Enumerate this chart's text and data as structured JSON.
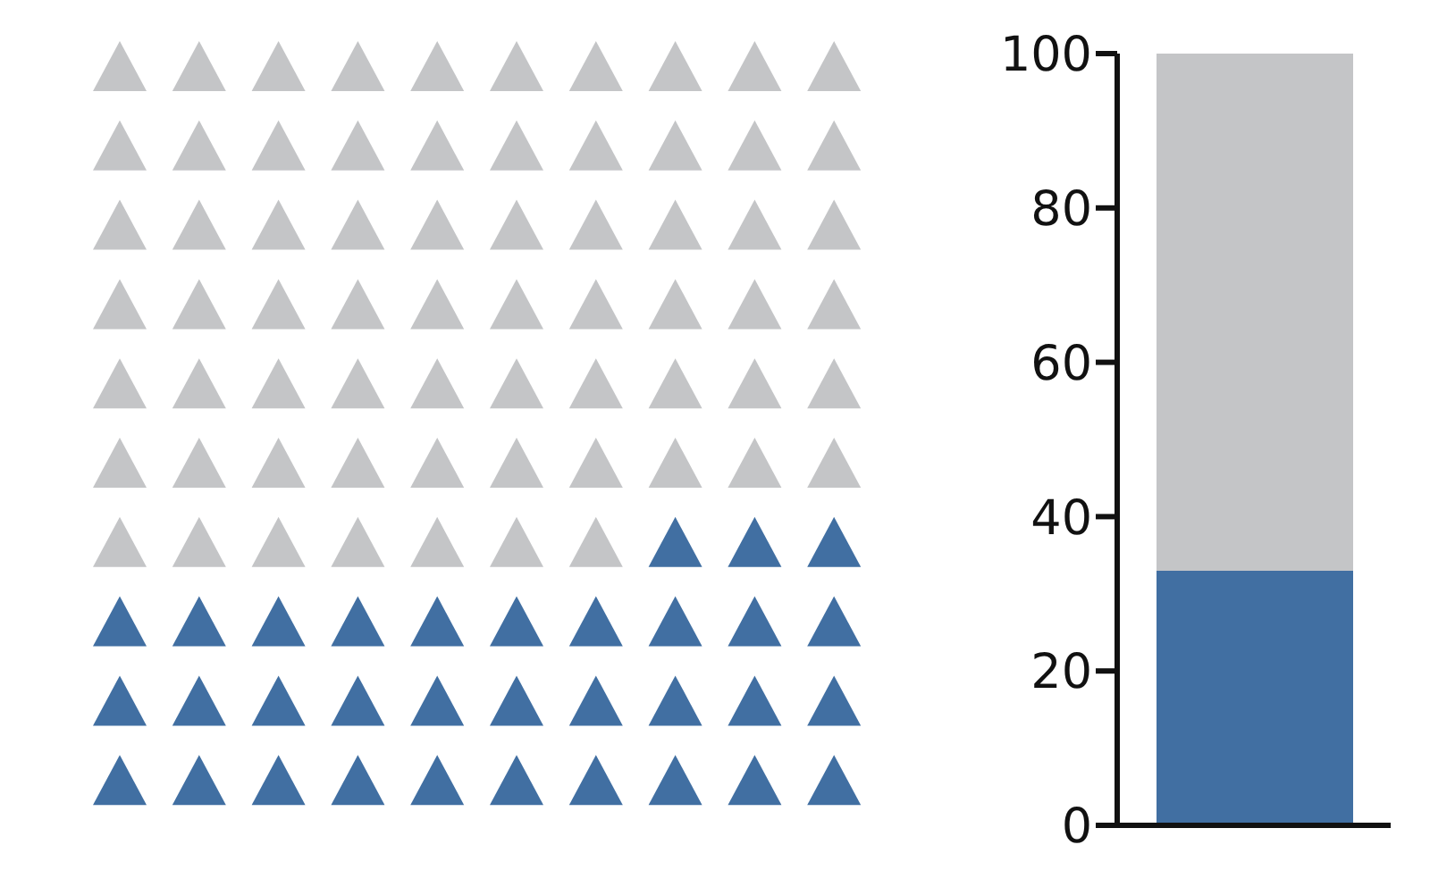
{
  "chart_data": {
    "type": "bar",
    "stacked": true,
    "categories": [
      null
    ],
    "series": [
      {
        "color": "#416fa2",
        "values": [
          33
        ]
      },
      {
        "color": "#c4c5c7",
        "values": [
          67
        ]
      }
    ],
    "ylim": [
      0,
      100
    ],
    "yticks": [
      0,
      20,
      40,
      60,
      80,
      100
    ]
  }
}
